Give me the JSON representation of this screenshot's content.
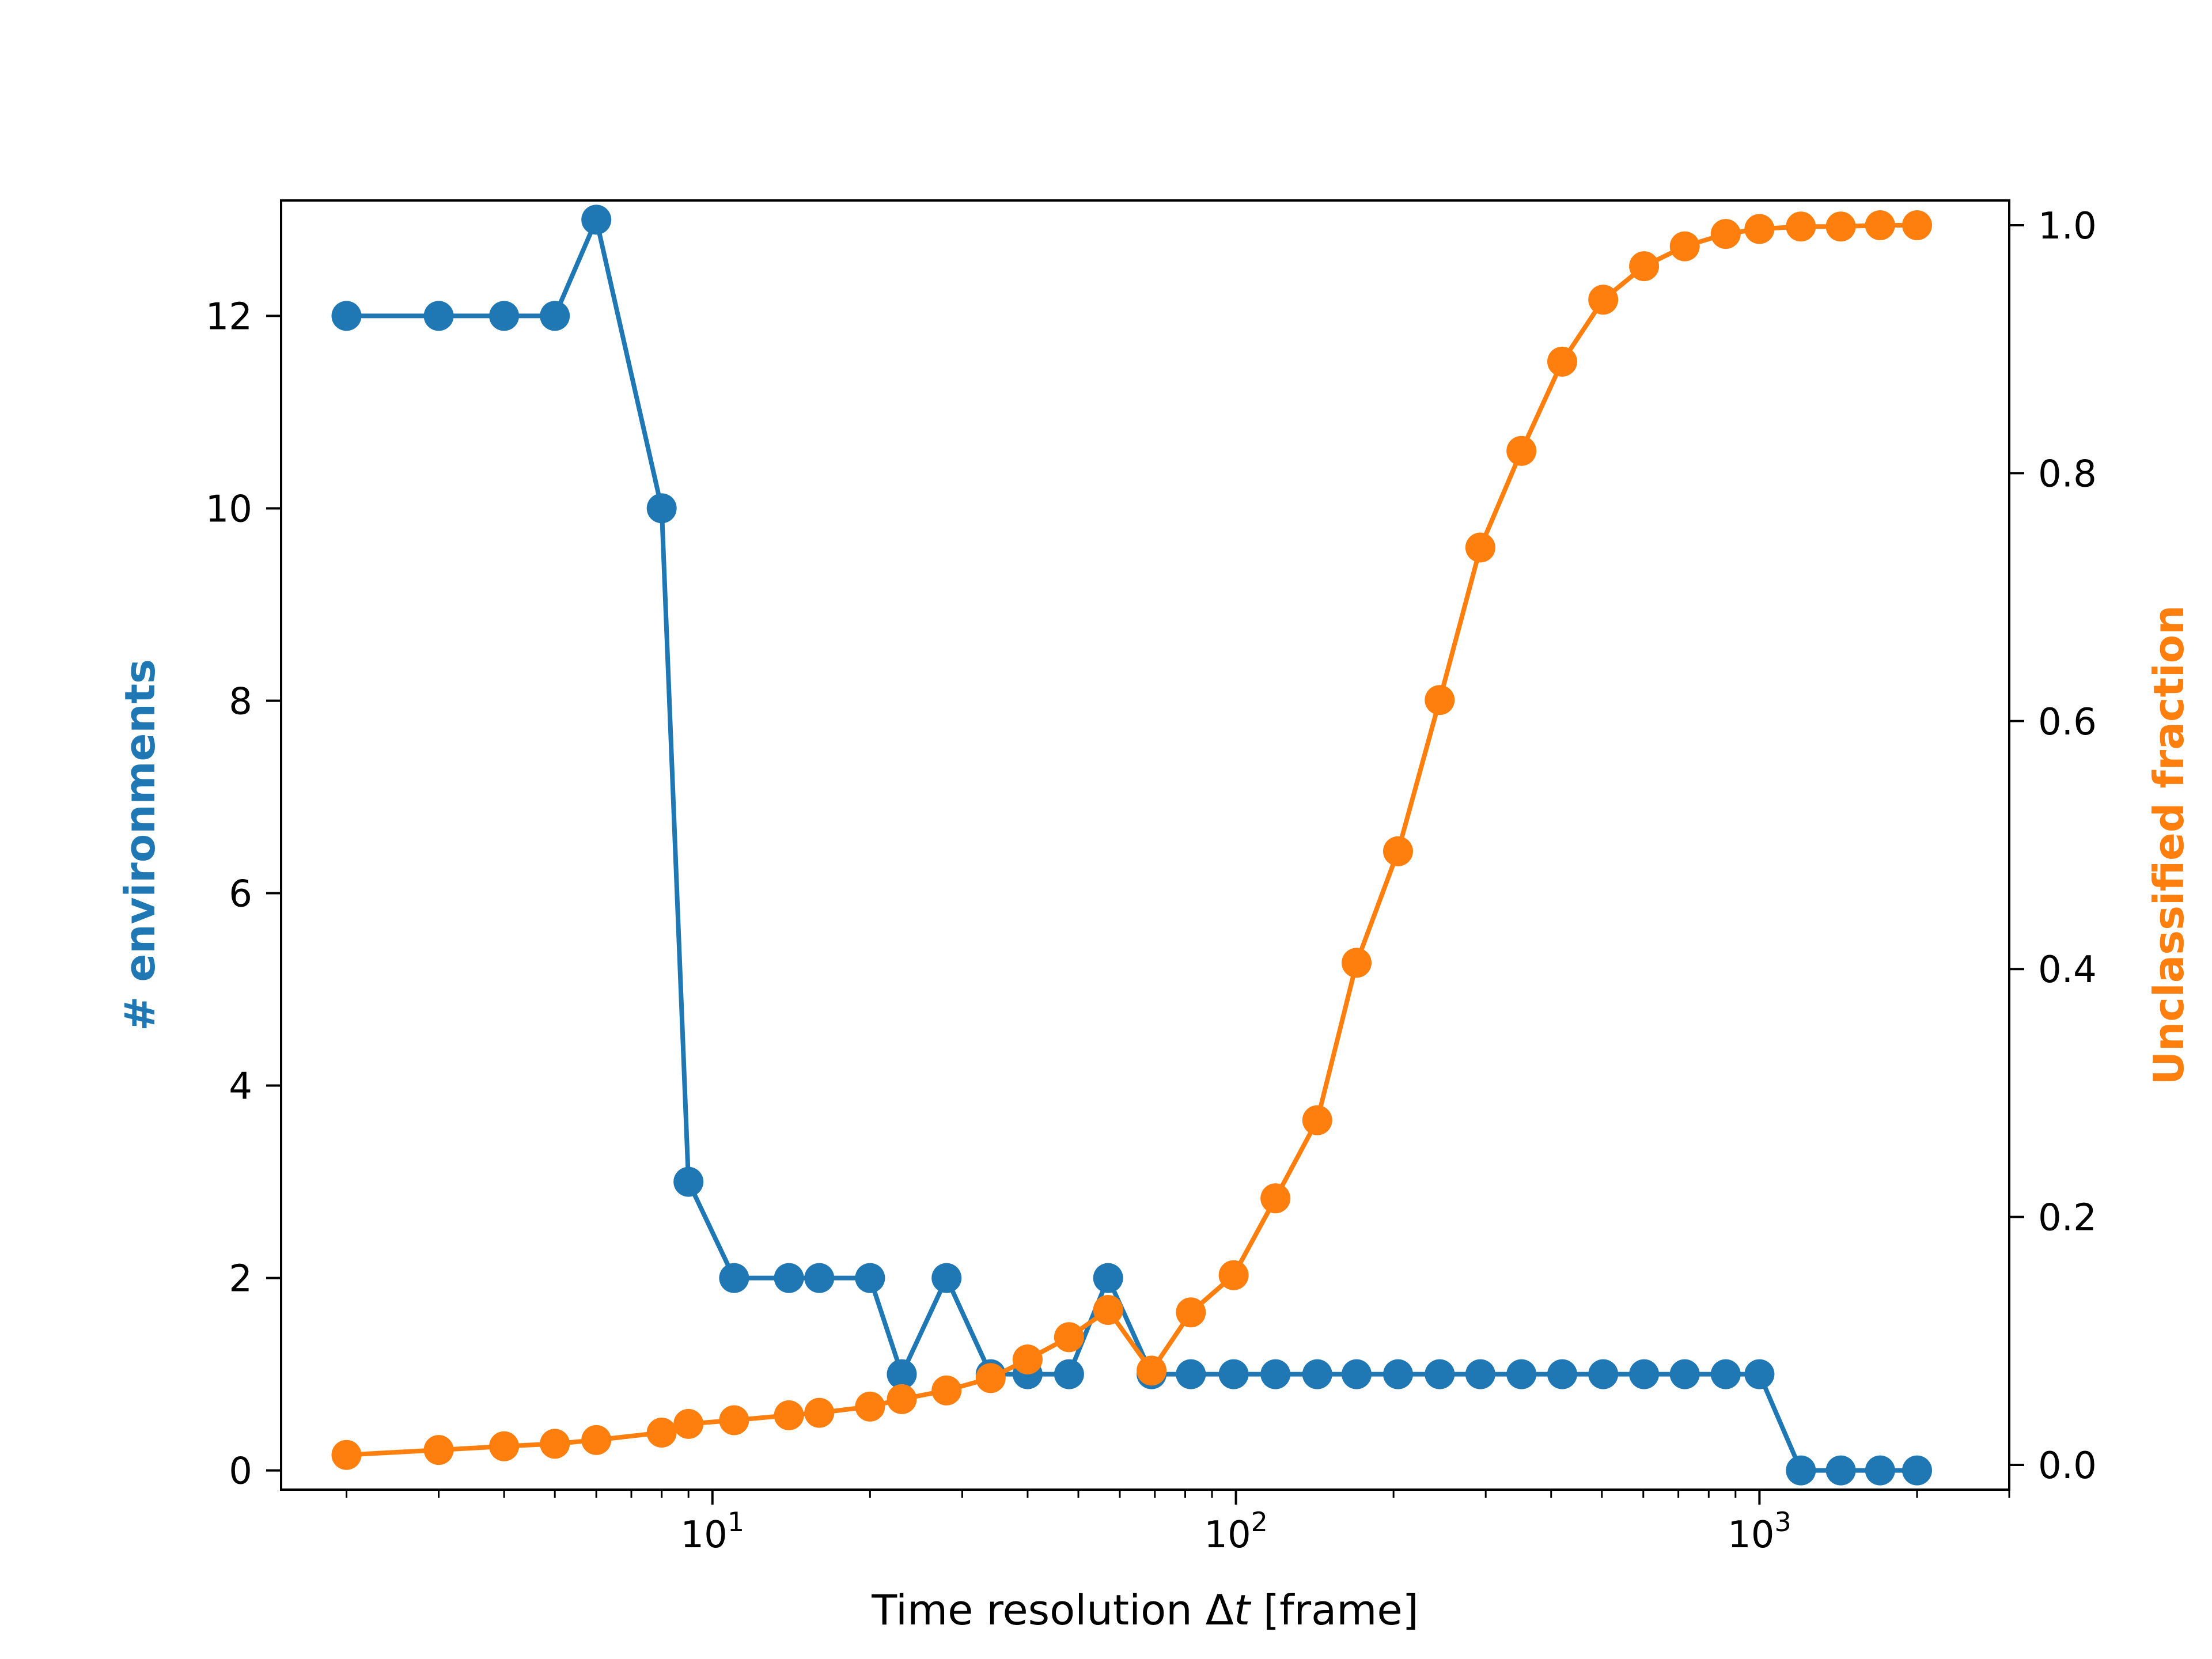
{
  "chart_data": {
    "type": "line",
    "xscale": "log",
    "xlim": [
      1.5,
      3000
    ],
    "x_ticks": [
      {
        "value": 10,
        "base": "10",
        "exp": "1"
      },
      {
        "value": 100,
        "base": "10",
        "exp": "2"
      },
      {
        "value": 1000,
        "base": "10",
        "exp": "3"
      }
    ],
    "xlabel": {
      "prefix": "Time resolution Δ",
      "italic": "t",
      "suffix": " [frame]"
    },
    "left_axis": {
      "label": "# environments",
      "color": "#1f77b4",
      "ylim": [
        -0.2,
        13.2
      ],
      "ticks": [
        0,
        2,
        4,
        6,
        8,
        10,
        12
      ],
      "tick_labels": [
        "0",
        "2",
        "4",
        "6",
        "8",
        "10",
        "12"
      ]
    },
    "right_axis": {
      "label": "Unclassified fraction",
      "color": "#ff7f0e",
      "ylim": [
        -0.02,
        1.02
      ],
      "ticks": [
        0.0,
        0.2,
        0.4,
        0.6,
        0.8,
        1.0
      ],
      "tick_labels": [
        "0.0",
        "0.2",
        "0.4",
        "0.6",
        "0.8",
        "1.0"
      ]
    },
    "x": [
      2,
      3,
      4,
      5,
      6,
      8,
      9,
      11,
      14,
      16,
      20,
      23,
      28,
      34,
      40,
      48,
      57,
      69,
      82,
      99,
      119,
      143,
      170,
      204,
      245,
      293,
      351,
      420,
      503,
      602,
      720,
      862,
      1000,
      1200,
      1430,
      1700,
      2000
    ],
    "series": [
      {
        "name": "# environments",
        "axis": "left",
        "color": "#1f77b4",
        "values": [
          12,
          12,
          12,
          12,
          13,
          10,
          3,
          2,
          2,
          2,
          2,
          1,
          2,
          1,
          1,
          1,
          2,
          1,
          1,
          1,
          1,
          1,
          1,
          1,
          1,
          1,
          1,
          1,
          1,
          1,
          1,
          1,
          1,
          0,
          0,
          0,
          0
        ]
      },
      {
        "name": "Unclassified fraction",
        "axis": "right",
        "color": "#ff7f0e",
        "values": [
          0.008,
          0.012,
          0.015,
          0.017,
          0.02,
          0.026,
          0.033,
          0.036,
          0.04,
          0.042,
          0.047,
          0.053,
          0.06,
          0.07,
          0.085,
          0.103,
          0.125,
          0.076,
          0.123,
          0.153,
          0.215,
          0.278,
          0.405,
          0.495,
          0.617,
          0.74,
          0.818,
          0.89,
          0.94,
          0.967,
          0.983,
          0.993,
          0.997,
          0.999,
          0.999,
          1.0,
          1.0
        ]
      }
    ],
    "grid": false,
    "legend": "none"
  }
}
